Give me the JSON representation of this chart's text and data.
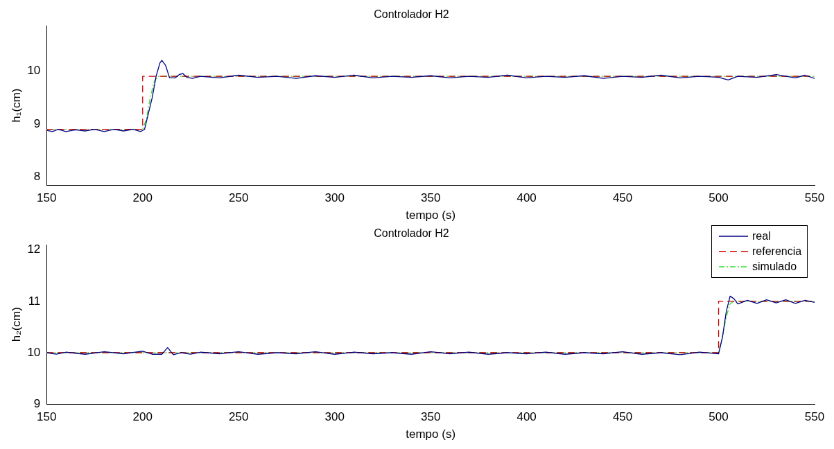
{
  "chart_data": [
    {
      "type": "line",
      "title": "Controlador H2",
      "xlabel": "tempo (s)",
      "ylabel": "h₁(cm)",
      "xlim": [
        150,
        550
      ],
      "xticks": [
        150,
        200,
        250,
        300,
        350,
        400,
        450,
        500,
        550
      ],
      "ylim": [
        7.85,
        10.85
      ],
      "yticks": [
        8,
        9,
        10
      ],
      "grid": false,
      "legend": false,
      "series": [
        {
          "color": "#000080",
          "line_style": "solid",
          "x": [
            150,
            153,
            156,
            160,
            165,
            170,
            175,
            180,
            185,
            190,
            195,
            199,
            201,
            203,
            205,
            207,
            209,
            210,
            212,
            214,
            217,
            219,
            221,
            223,
            226,
            230,
            240,
            250,
            260,
            270,
            280,
            290,
            300,
            310,
            320,
            330,
            340,
            350,
            360,
            370,
            380,
            390,
            400,
            410,
            420,
            430,
            440,
            450,
            460,
            470,
            480,
            490,
            500,
            505,
            510,
            520,
            530,
            540,
            545,
            550
          ],
          "values": [
            8.88,
            8.86,
            8.9,
            8.86,
            8.89,
            8.87,
            8.9,
            8.86,
            8.9,
            8.87,
            8.9,
            8.86,
            8.9,
            9.2,
            9.5,
            9.9,
            10.15,
            10.2,
            10.1,
            9.87,
            9.87,
            9.93,
            9.95,
            9.88,
            9.86,
            9.9,
            9.87,
            9.92,
            9.88,
            9.9,
            9.86,
            9.91,
            9.88,
            9.92,
            9.87,
            9.9,
            9.88,
            9.91,
            9.87,
            9.9,
            9.88,
            9.92,
            9.87,
            9.9,
            9.88,
            9.91,
            9.86,
            9.9,
            9.88,
            9.92,
            9.87,
            9.9,
            9.88,
            9.83,
            9.9,
            9.88,
            9.93,
            9.87,
            9.92,
            9.86
          ]
        },
        {
          "color": "#cc0000",
          "line_style": "dashed",
          "x": [
            150,
            200,
            200,
            550
          ],
          "values": [
            8.9,
            8.9,
            9.9,
            9.9
          ]
        },
        {
          "color": "#33dd33",
          "line_style": "dotted",
          "x": [
            150,
            200,
            202,
            204,
            206,
            208,
            550
          ],
          "values": [
            8.9,
            8.9,
            9.1,
            9.5,
            9.8,
            9.9,
            9.9
          ]
        }
      ]
    },
    {
      "type": "line",
      "title": "Controlador H2",
      "xlabel": "tempo (s)",
      "ylabel": "h₂(cm)",
      "xlim": [
        150,
        550
      ],
      "xticks": [
        150,
        200,
        250,
        300,
        350,
        400,
        450,
        500,
        550
      ],
      "ylim": [
        9,
        12.1
      ],
      "yticks": [
        9,
        10,
        11,
        12
      ],
      "grid": false,
      "legend": "top right",
      "series": [
        {
          "name": "real",
          "color": "#000080",
          "line_style": "solid",
          "x": [
            150,
            155,
            160,
            170,
            180,
            190,
            200,
            205,
            210,
            213,
            216,
            220,
            225,
            230,
            240,
            250,
            260,
            270,
            280,
            290,
            300,
            310,
            320,
            330,
            340,
            350,
            360,
            370,
            380,
            390,
            400,
            410,
            420,
            430,
            440,
            450,
            460,
            470,
            480,
            490,
            500,
            502,
            504,
            506,
            508,
            510,
            515,
            520,
            525,
            530,
            535,
            540,
            545,
            550
          ],
          "values": [
            10.0,
            9.97,
            10.01,
            9.97,
            10.02,
            9.98,
            10.03,
            9.97,
            9.97,
            10.1,
            9.96,
            10.0,
            9.97,
            10.01,
            9.98,
            10.02,
            9.97,
            10.0,
            9.98,
            10.02,
            9.97,
            10.01,
            9.98,
            10.0,
            9.97,
            10.02,
            9.98,
            10.01,
            9.97,
            10.0,
            9.98,
            10.01,
            9.97,
            10.0,
            9.98,
            10.02,
            9.97,
            10.0,
            9.96,
            10.01,
            9.98,
            10.3,
            10.8,
            11.1,
            11.05,
            10.95,
            11.02,
            10.96,
            11.03,
            10.97,
            11.03,
            10.96,
            11.02,
            10.98
          ]
        },
        {
          "name": "referencia",
          "color": "#cc0000",
          "line_style": "dashed",
          "x": [
            150,
            500,
            500,
            550
          ],
          "values": [
            10,
            10,
            11,
            11
          ]
        },
        {
          "name": "simulado",
          "color": "#33dd33",
          "line_style": "dotted",
          "x": [
            150,
            500,
            502,
            504,
            506,
            508,
            550
          ],
          "values": [
            10,
            10,
            10.3,
            10.7,
            10.95,
            11,
            11
          ]
        }
      ]
    }
  ]
}
